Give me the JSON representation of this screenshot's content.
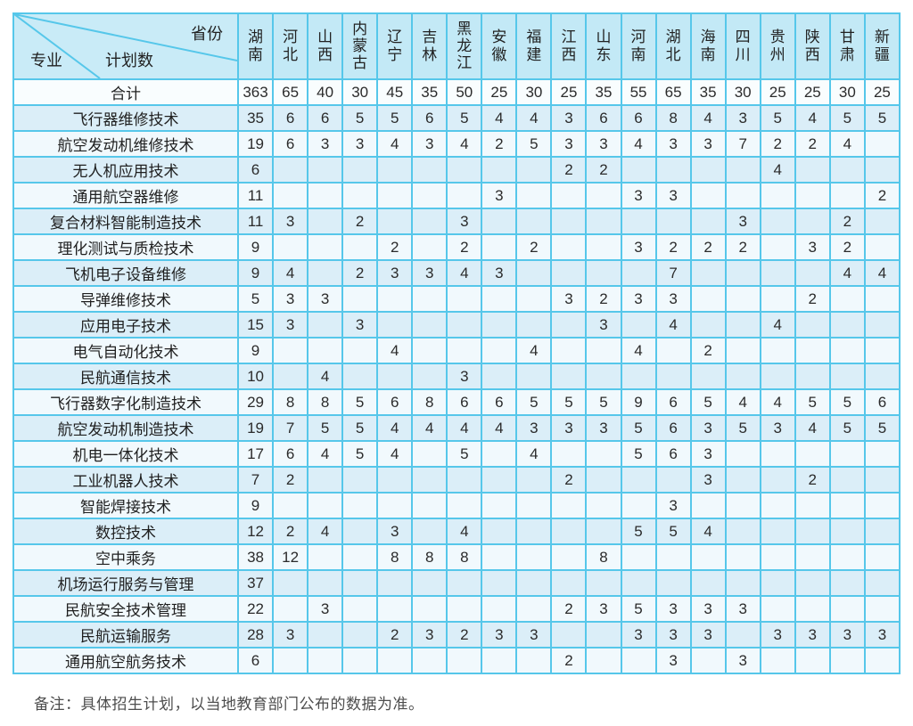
{
  "header": {
    "corner": {
      "province_label": "省份",
      "major_label": "专业",
      "plan_label": "计划数"
    },
    "provinces": [
      "湖南",
      "河北",
      "山西",
      "内蒙古",
      "辽宁",
      "吉林",
      "黑龙江",
      "安徽",
      "福建",
      "江西",
      "山东",
      "河南",
      "湖北",
      "海南",
      "四川",
      "贵州",
      "陕西",
      "甘肃",
      "新疆"
    ]
  },
  "rows": [
    {
      "major": "合计",
      "values": [
        "363",
        "65",
        "40",
        "30",
        "45",
        "35",
        "50",
        "25",
        "30",
        "25",
        "35",
        "55",
        "65",
        "35",
        "30",
        "25",
        "25",
        "30",
        "25"
      ]
    },
    {
      "major": "飞行器维修技术",
      "values": [
        "35",
        "6",
        "6",
        "5",
        "5",
        "6",
        "5",
        "4",
        "4",
        "3",
        "6",
        "6",
        "8",
        "4",
        "3",
        "5",
        "4",
        "5",
        "5"
      ]
    },
    {
      "major": "航空发动机维修技术",
      "values": [
        "19",
        "6",
        "3",
        "3",
        "4",
        "3",
        "4",
        "2",
        "5",
        "3",
        "3",
        "4",
        "3",
        "3",
        "7",
        "2",
        "2",
        "4",
        ""
      ]
    },
    {
      "major": "无人机应用技术",
      "values": [
        "6",
        "",
        "",
        "",
        "",
        "",
        "",
        "",
        "",
        "2",
        "2",
        "",
        "",
        "",
        "",
        "4",
        "",
        "",
        ""
      ]
    },
    {
      "major": "通用航空器维修",
      "values": [
        "11",
        "",
        "",
        "",
        "",
        "",
        "",
        "3",
        "",
        "",
        "",
        "3",
        "3",
        "",
        "",
        "",
        "",
        "",
        "2"
      ]
    },
    {
      "major": "复合材料智能制造技术",
      "values": [
        "11",
        "3",
        "",
        "2",
        "",
        "",
        "3",
        "",
        "",
        "",
        "",
        "",
        "",
        "",
        "3",
        "",
        "",
        "2",
        ""
      ]
    },
    {
      "major": "理化测试与质检技术",
      "values": [
        "9",
        "",
        "",
        "",
        "2",
        "",
        "2",
        "",
        "2",
        "",
        "",
        "3",
        "2",
        "2",
        "2",
        "",
        "3",
        "2",
        ""
      ]
    },
    {
      "major": "飞机电子设备维修",
      "values": [
        "9",
        "4",
        "",
        "2",
        "3",
        "3",
        "4",
        "3",
        "",
        "",
        "",
        "",
        "7",
        "",
        "",
        "",
        "",
        "4",
        "4"
      ]
    },
    {
      "major": "导弹维修技术",
      "values": [
        "5",
        "3",
        "3",
        "",
        "",
        "",
        "",
        "",
        "",
        "3",
        "2",
        "3",
        "3",
        "",
        "",
        "",
        "2",
        "",
        ""
      ]
    },
    {
      "major": "应用电子技术",
      "values": [
        "15",
        "3",
        "",
        "3",
        "",
        "",
        "",
        "",
        "",
        "",
        "3",
        "",
        "4",
        "",
        "",
        "4",
        "",
        "",
        ""
      ]
    },
    {
      "major": "电气自动化技术",
      "values": [
        "9",
        "",
        "",
        "",
        "4",
        "",
        "",
        "",
        "4",
        "",
        "",
        "4",
        "",
        "2",
        "",
        "",
        "",
        "",
        ""
      ]
    },
    {
      "major": "民航通信技术",
      "values": [
        "10",
        "",
        "4",
        "",
        "",
        "",
        "3",
        "",
        "",
        "",
        "",
        "",
        "",
        "",
        "",
        "",
        "",
        "",
        ""
      ]
    },
    {
      "major": "飞行器数字化制造技术",
      "values": [
        "29",
        "8",
        "8",
        "5",
        "6",
        "8",
        "6",
        "6",
        "5",
        "5",
        "5",
        "9",
        "6",
        "5",
        "4",
        "4",
        "5",
        "5",
        "6"
      ]
    },
    {
      "major": "航空发动机制造技术",
      "values": [
        "19",
        "7",
        "5",
        "5",
        "4",
        "4",
        "4",
        "4",
        "3",
        "3",
        "3",
        "5",
        "6",
        "3",
        "5",
        "3",
        "4",
        "5",
        "5"
      ]
    },
    {
      "major": "机电一体化技术",
      "values": [
        "17",
        "6",
        "4",
        "5",
        "4",
        "",
        "5",
        "",
        "4",
        "",
        "",
        "5",
        "6",
        "3",
        "",
        "",
        "",
        "",
        ""
      ]
    },
    {
      "major": "工业机器人技术",
      "values": [
        "7",
        "2",
        "",
        "",
        "",
        "",
        "",
        "",
        "",
        "2",
        "",
        "",
        "",
        "3",
        "",
        "",
        "2",
        "",
        ""
      ]
    },
    {
      "major": "智能焊接技术",
      "values": [
        "9",
        "",
        "",
        "",
        "",
        "",
        "",
        "",
        "",
        "",
        "",
        "",
        "3",
        "",
        "",
        "",
        "",
        "",
        ""
      ]
    },
    {
      "major": "数控技术",
      "values": [
        "12",
        "2",
        "4",
        "",
        "3",
        "",
        "4",
        "",
        "",
        "",
        "",
        "5",
        "5",
        "4",
        "",
        "",
        "",
        "",
        ""
      ]
    },
    {
      "major": "空中乘务",
      "values": [
        "38",
        "12",
        "",
        "",
        "8",
        "8",
        "8",
        "",
        "",
        "",
        "8",
        "",
        "",
        "",
        "",
        "",
        "",
        "",
        ""
      ]
    },
    {
      "major": "机场运行服务与管理",
      "values": [
        "37",
        "",
        "",
        "",
        "",
        "",
        "",
        "",
        "",
        "",
        "",
        "",
        "",
        "",
        "",
        "",
        "",
        "",
        ""
      ]
    },
    {
      "major": "民航安全技术管理",
      "values": [
        "22",
        "",
        "3",
        "",
        "",
        "",
        "",
        "",
        "",
        "2",
        "3",
        "5",
        "3",
        "3",
        "3",
        "",
        "",
        "",
        ""
      ]
    },
    {
      "major": "民航运输服务",
      "values": [
        "28",
        "3",
        "",
        "",
        "2",
        "3",
        "2",
        "3",
        "3",
        "",
        "",
        "3",
        "3",
        "3",
        "",
        "3",
        "3",
        "3",
        "3"
      ]
    },
    {
      "major": "通用航空航务技术",
      "values": [
        "6",
        "",
        "",
        "",
        "",
        "",
        "",
        "",
        "",
        "2",
        "",
        "",
        "3",
        "",
        "3",
        "",
        "",
        "",
        ""
      ]
    }
  ],
  "note": "备注：具体招生计划，以当地教育部门公布的数据为准。",
  "colors": {
    "accent_border": "#56c7ea",
    "outer_border": "#38b2dc",
    "header_bg": "#c3e9f6",
    "row_odd_bg": "#f1f9fd",
    "row_even_bg": "#dbeef8"
  }
}
